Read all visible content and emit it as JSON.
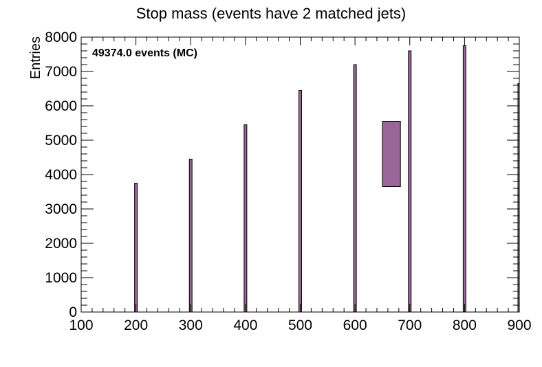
{
  "chart_data": {
    "type": "bar",
    "title": "Stop mass (events have 2 matched jets)",
    "xlabel": "",
    "ylabel": "Entries",
    "annotation": "49374.0 events (MC)",
    "xlim": [
      100,
      900
    ],
    "ylim": [
      0,
      8000
    ],
    "xticks": [
      "100",
      "200",
      "300",
      "400",
      "500",
      "600",
      "700",
      "800",
      "900"
    ],
    "yticks": [
      "0",
      "1000",
      "2000",
      "3000",
      "4000",
      "5000",
      "6000",
      "7000",
      "8000"
    ],
    "bin_width": 10,
    "bins": [
      {
        "x": 200,
        "value": 3750
      },
      {
        "x": 300,
        "value": 4450
      },
      {
        "x": 400,
        "value": 5450
      },
      {
        "x": 500,
        "value": 6450
      },
      {
        "x": 600,
        "value": 7200
      },
      {
        "x": 700,
        "value": 7600
      },
      {
        "x": 800,
        "value": 7750
      },
      {
        "x": 900,
        "value": 6650
      }
    ],
    "legend_box": {
      "x_from": 650,
      "x_to": 683,
      "y_from": 3650,
      "y_to": 5550
    },
    "fill_color": "#996699",
    "line_color": "#000000",
    "grid": false
  }
}
